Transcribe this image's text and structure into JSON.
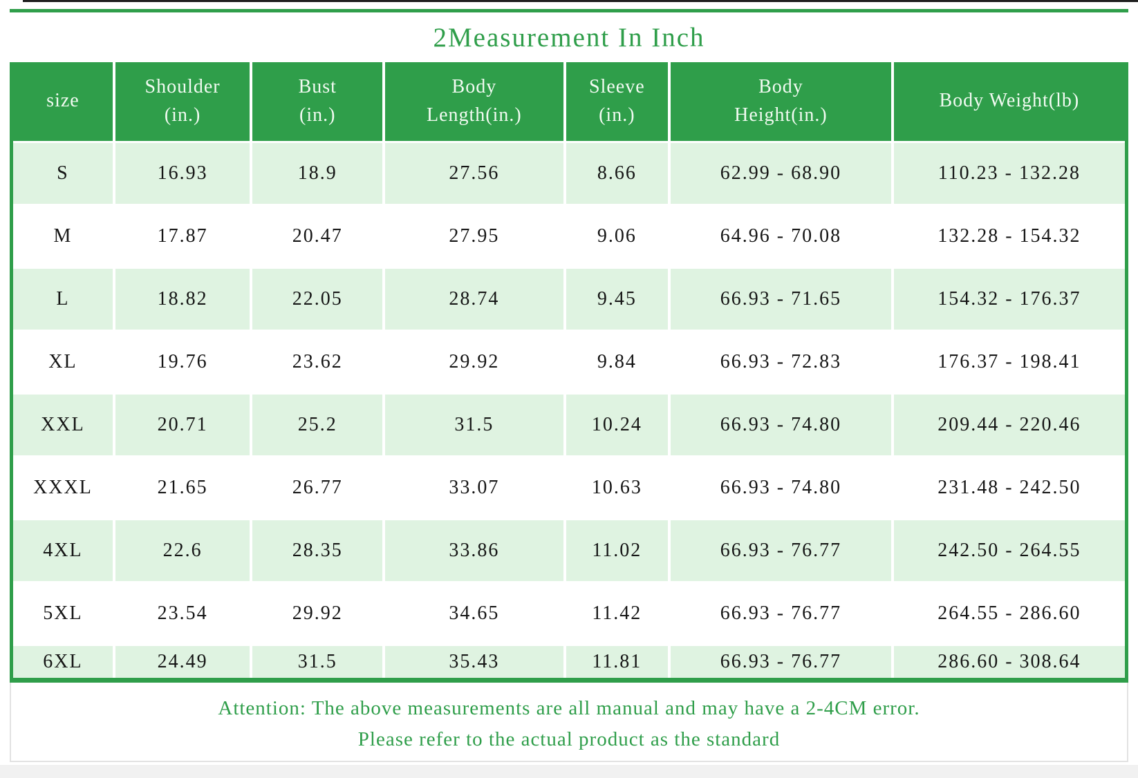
{
  "title": "2Measurement In Inch",
  "table": {
    "columns": [
      "size",
      "Shoulder\n(in.)",
      "Bust\n(in.)",
      "Body\nLength(in.)",
      "Sleeve\n(in.)",
      "Body\nHeight(in.)",
      "Body Weight(lb)"
    ],
    "rows": [
      {
        "cells": [
          "S",
          "16.93",
          "18.9",
          "27.56",
          "8.66",
          "62.99 - 68.90",
          "110.23 - 132.28"
        ]
      },
      {
        "cells": [
          "M",
          "17.87",
          "20.47",
          "27.95",
          "9.06",
          "64.96 - 70.08",
          "132.28 - 154.32"
        ]
      },
      {
        "cells": [
          "L",
          "18.82",
          "22.05",
          "28.74",
          "9.45",
          "66.93 - 71.65",
          "154.32 - 176.37"
        ]
      },
      {
        "cells": [
          "XL",
          "19.76",
          "23.62",
          "29.92",
          "9.84",
          "66.93 - 72.83",
          "176.37 - 198.41"
        ]
      },
      {
        "cells": [
          "XXL",
          "20.71",
          "25.2",
          "31.5",
          "10.24",
          "66.93 - 74.80",
          "209.44 - 220.46"
        ]
      },
      {
        "cells": [
          "XXXL",
          "21.65",
          "26.77",
          "33.07",
          "10.63",
          "66.93 - 74.80",
          "231.48 - 242.50"
        ]
      },
      {
        "cells": [
          "4XL",
          "22.6",
          "28.35",
          "33.86",
          "11.02",
          "66.93 - 76.77",
          "242.50 - 264.55"
        ]
      },
      {
        "cells": [
          "5XL",
          "23.54",
          "29.92",
          "34.65",
          "11.42",
          "66.93 - 76.77",
          "264.55 - 286.60"
        ]
      },
      {
        "cells": [
          "6XL",
          "24.49",
          "31.5",
          "35.43",
          "11.81",
          "66.93 - 76.77",
          "286.60 - 308.64"
        ]
      }
    ]
  },
  "attention": {
    "line1": "Attention: The above measurements are all manual and may have a 2-4CM error.",
    "line2": "Please refer to the actual product as the standard"
  },
  "colors": {
    "green": "#2f9e4a",
    "light-row": "#dff3e1",
    "header-text": "#f2fbf2",
    "data-text": "#151515",
    "top-line": "#1f1f1f",
    "edge-gray": "#e2e2e2",
    "strip": "#f1f1f1"
  }
}
